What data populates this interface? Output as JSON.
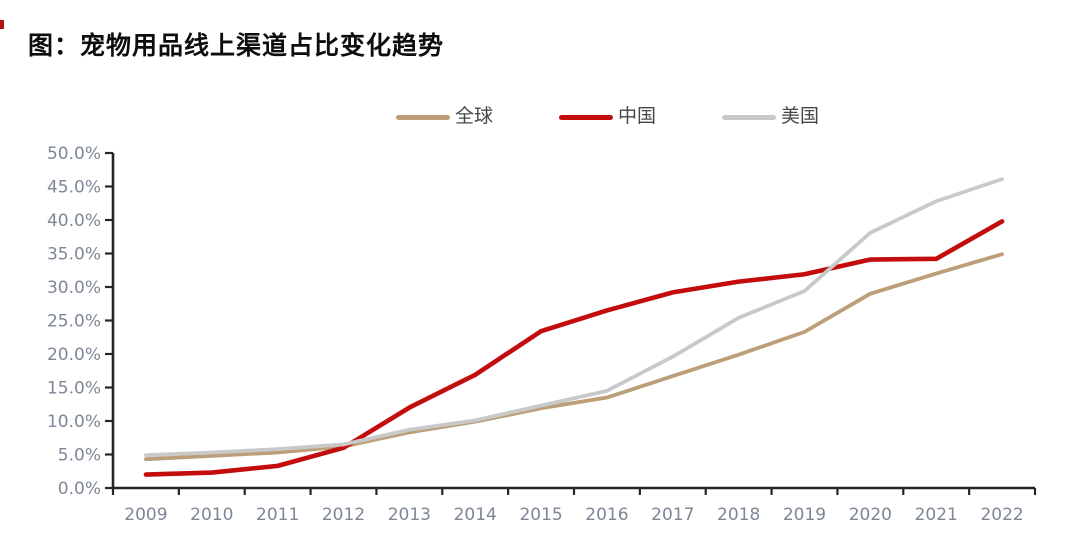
{
  "page": {
    "title": "图：宠物用品线上渠道占比变化趋势"
  },
  "chart_data": {
    "type": "line",
    "title": "图：宠物用品线上渠道占比变化趋势",
    "xlabel": "",
    "ylabel": "",
    "categories": [
      "2009",
      "2010",
      "2011",
      "2012",
      "2013",
      "2014",
      "2015",
      "2016",
      "2017",
      "2018",
      "2019",
      "2020",
      "2021",
      "2022"
    ],
    "series": [
      {
        "name": "全球",
        "color": "#BC9E79",
        "values": [
          4.3,
          4.8,
          5.3,
          6.2,
          8.3,
          9.9,
          11.9,
          13.5,
          16.7,
          19.9,
          23.3,
          29.0,
          32.0,
          34.9
        ]
      },
      {
        "name": "中国",
        "color": "#C30D0D",
        "values": [
          2.0,
          2.3,
          3.3,
          6.0,
          12.0,
          16.9,
          23.4,
          26.5,
          29.2,
          30.8,
          31.9,
          34.1,
          34.2,
          39.8
        ]
      },
      {
        "name": "美国",
        "color": "#C9C9C9",
        "values": [
          4.9,
          5.3,
          5.8,
          6.5,
          8.7,
          10.1,
          12.3,
          14.5,
          19.6,
          25.4,
          29.4,
          38.1,
          42.8,
          46.1
        ]
      }
    ],
    "ylim": [
      0,
      50
    ],
    "ytick_step": 5,
    "ytick_labels": [
      "0.0%",
      "5.0%",
      "10.0%",
      "15.0%",
      "20.0%",
      "25.0%",
      "30.0%",
      "35.0%",
      "40.0%",
      "45.0%",
      "50.0%"
    ],
    "unit": "percent",
    "grid": false,
    "legend_position": "top-center",
    "axis_color": "#262626",
    "tick_label_color": "#7E8795"
  }
}
